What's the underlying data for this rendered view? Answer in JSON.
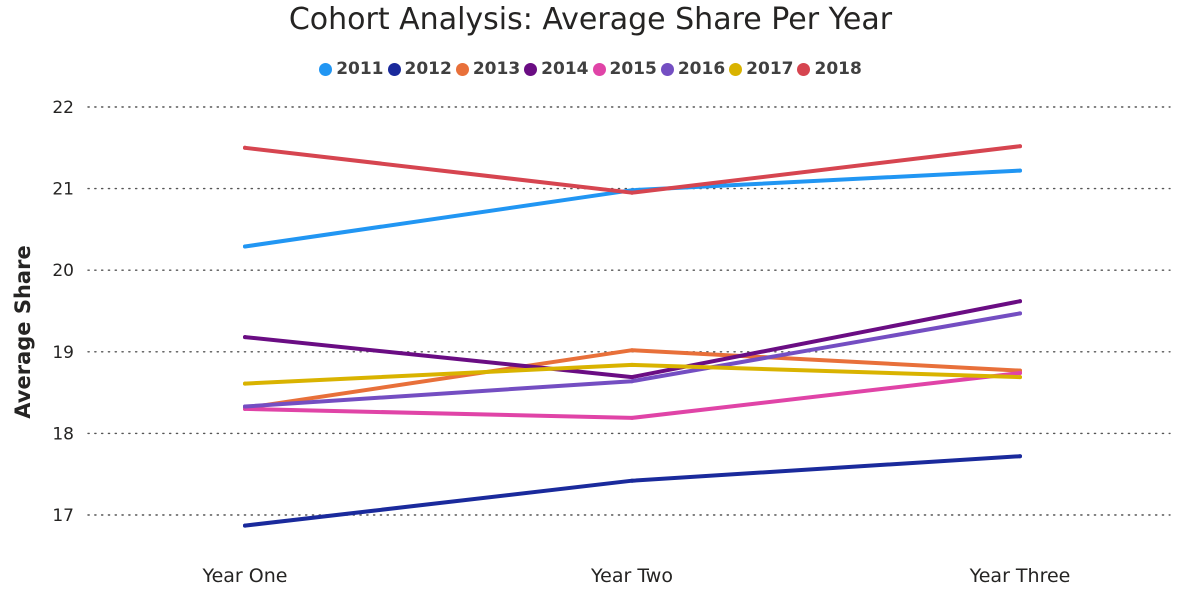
{
  "chart_data": {
    "type": "line",
    "title": "Cohort Analysis: Average Share Per Year",
    "xlabel": "",
    "ylabel": "Average Share",
    "categories": [
      "Year One",
      "Year Two",
      "Year Three"
    ],
    "ylim": [
      16.7,
      22.1
    ],
    "yticks": [
      17,
      18,
      19,
      20,
      21,
      22
    ],
    "grid": true,
    "legend_position": "top-center",
    "series": [
      {
        "name": "2011",
        "color": "#2196f3",
        "values": [
          20.29,
          20.98,
          21.22
        ]
      },
      {
        "name": "2012",
        "color": "#1a2a9c",
        "values": [
          16.87,
          17.42,
          17.72
        ]
      },
      {
        "name": "2013",
        "color": "#e8703a",
        "values": [
          18.31,
          19.02,
          18.77
        ]
      },
      {
        "name": "2014",
        "color": "#6a0d83",
        "values": [
          19.18,
          18.69,
          19.62
        ]
      },
      {
        "name": "2015",
        "color": "#e044a7",
        "values": [
          18.3,
          18.19,
          18.74
        ]
      },
      {
        "name": "2016",
        "color": "#744ec2",
        "values": [
          18.33,
          18.64,
          19.47
        ]
      },
      {
        "name": "2017",
        "color": "#d9b300",
        "values": [
          18.61,
          18.84,
          18.69
        ]
      },
      {
        "name": "2018",
        "color": "#d64550",
        "values": [
          21.5,
          20.95,
          21.52
        ]
      }
    ]
  }
}
